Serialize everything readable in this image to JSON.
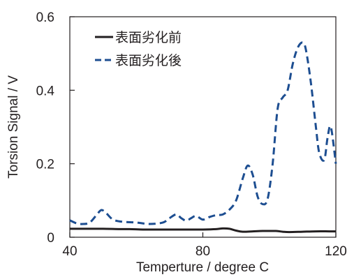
{
  "chart_data": {
    "type": "line",
    "xlabel": "Temperture / degree C",
    "ylabel": "Torsion Signal / V",
    "xlim": [
      40,
      120
    ],
    "ylim": [
      0,
      0.6
    ],
    "x_ticks": [
      40,
      80,
      120
    ],
    "x_tick_labels": [
      "40",
      "80",
      "120"
    ],
    "y_ticks": [
      0,
      0.2,
      0.4,
      0.6
    ],
    "y_tick_labels": [
      "0",
      "0.2",
      "0.4",
      "0.6"
    ],
    "grid": false,
    "legend_position": "top-left",
    "series": [
      {
        "name": "表面劣化前",
        "style": "solid",
        "color": "#231f20",
        "x": [
          40,
          45,
          50,
          55,
          58,
          62,
          66,
          70,
          75,
          80,
          84,
          86,
          88,
          90,
          92,
          95,
          98,
          102,
          104,
          106,
          110,
          114,
          118,
          120
        ],
        "y": [
          0.023,
          0.023,
          0.023,
          0.022,
          0.022,
          0.021,
          0.021,
          0.021,
          0.021,
          0.021,
          0.022,
          0.024,
          0.023,
          0.018,
          0.015,
          0.016,
          0.017,
          0.017,
          0.015,
          0.014,
          0.015,
          0.016,
          0.016,
          0.016
        ]
      },
      {
        "name": "表面劣化後",
        "style": "dashed",
        "color": "#1d4e91",
        "x": [
          40,
          42,
          44,
          46,
          48,
          49.5,
          51,
          53,
          56,
          60,
          64,
          68,
          70,
          72,
          73.5,
          75,
          76.5,
          78,
          80,
          82,
          84,
          86,
          88,
          90,
          92,
          93.5,
          95,
          96.5,
          98,
          99.5,
          101,
          102.5,
          104,
          105.5,
          107,
          108.5,
          110,
          111,
          112.5,
          114,
          115,
          116.5,
          117.5,
          118.5,
          120
        ],
        "y": [
          0.046,
          0.038,
          0.036,
          0.04,
          0.06,
          0.074,
          0.065,
          0.048,
          0.042,
          0.04,
          0.036,
          0.04,
          0.052,
          0.062,
          0.052,
          0.045,
          0.052,
          0.058,
          0.048,
          0.055,
          0.06,
          0.062,
          0.075,
          0.1,
          0.16,
          0.195,
          0.17,
          0.11,
          0.09,
          0.105,
          0.2,
          0.35,
          0.38,
          0.4,
          0.47,
          0.515,
          0.53,
          0.51,
          0.42,
          0.3,
          0.23,
          0.21,
          0.27,
          0.3,
          0.2
        ]
      }
    ]
  }
}
